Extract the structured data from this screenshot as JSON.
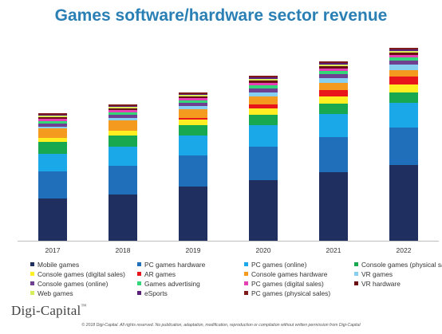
{
  "chart_data": {
    "type": "bar",
    "stacked": true,
    "title": "Games software/hardware sector revenue",
    "categories": [
      "2017",
      "2018",
      "2019",
      "2020",
      "2021",
      "2022"
    ],
    "series": [
      {
        "name": "Mobile games",
        "color": "#1f2f5f",
        "values": [
          53,
          58,
          68,
          76,
          86,
          95
        ]
      },
      {
        "name": "PC games hardware",
        "color": "#1f6fba",
        "values": [
          34,
          36,
          39,
          42,
          44,
          47
        ]
      },
      {
        "name": "PC games (online)",
        "color": "#1aa8e8",
        "values": [
          22,
          24,
          25,
          27,
          29,
          31
        ]
      },
      {
        "name": "Console games (physical sales)",
        "color": "#17a850",
        "values": [
          15,
          14,
          13,
          13,
          13,
          13
        ]
      },
      {
        "name": "Console games (digital sales)",
        "color": "#ffee22",
        "values": [
          5,
          6,
          7,
          8,
          9,
          10
        ]
      },
      {
        "name": "AR games",
        "color": "#e8151b",
        "values": [
          0,
          0,
          2,
          5,
          8,
          10
        ]
      },
      {
        "name": "Console games hardware",
        "color": "#f49a1e",
        "values": [
          12,
          13,
          11,
          10,
          9,
          8
        ]
      },
      {
        "name": "VR games",
        "color": "#86cff0",
        "values": [
          2,
          3,
          4,
          5,
          6,
          7
        ]
      },
      {
        "name": "Console games (online)",
        "color": "#6f3f91",
        "values": [
          4,
          4,
          4,
          5,
          5,
          5
        ]
      },
      {
        "name": "Games advertising",
        "color": "#34d67a",
        "values": [
          3,
          3,
          3,
          4,
          4,
          4
        ]
      },
      {
        "name": "PC games (digital sales)",
        "color": "#e740b5",
        "values": [
          3,
          3,
          3,
          3,
          3,
          3
        ]
      },
      {
        "name": "VR hardware",
        "color": "#6a0f14",
        "values": [
          2,
          2,
          2,
          3,
          3,
          3
        ]
      },
      {
        "name": "Web games",
        "color": "#d9ec5a",
        "values": [
          2,
          2,
          2,
          2,
          2,
          2
        ]
      },
      {
        "name": "eSports",
        "color": "#5a1f7a",
        "values": [
          1,
          1,
          1,
          2,
          2,
          2
        ]
      },
      {
        "name": "PC games (physical sales)",
        "color": "#7f1a1a",
        "values": [
          2,
          2,
          2,
          2,
          2,
          2
        ]
      }
    ],
    "ylim": [
      0,
      260
    ],
    "grid": false,
    "legend": "bottom"
  },
  "logo": {
    "name": "Digi-Capital",
    "tm": "™"
  },
  "footer": "© 2018 Digi-Capital. All rights reserved. No publication, adaptation, modification, reproduction or compilation without written permission from Digi-Capital"
}
